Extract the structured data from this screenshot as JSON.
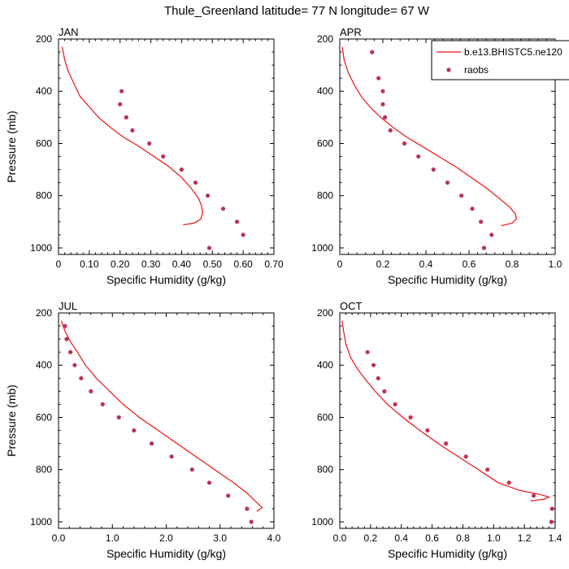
{
  "figure": {
    "title": "Thule_Greenland  latitude= 77 N longitude= 67 W"
  },
  "legend": {
    "items": [
      {
        "label": "b.e13.BHISTC5.ne120",
        "kind": "line",
        "color": "#ee1111"
      },
      {
        "label": "raobs",
        "kind": "marker",
        "color": "#bb3355"
      }
    ],
    "placement": "top-right of APR panel, clipped at figure edge"
  },
  "colors": {
    "model": "#ee1111",
    "obs": "#bb3355"
  },
  "chart_data": [
    {
      "type": "line",
      "panel_label": "JAN",
      "xlabel": "Specific Humidity (g/kg)",
      "ylabel": "Pressure (mb)",
      "xlim": [
        0,
        0.7
      ],
      "ylim": [
        1025,
        200
      ],
      "y_inverted": true,
      "xticks": [
        "0",
        "0.10",
        "0.20",
        "0.30",
        "0.40",
        "0.50",
        "0.60",
        "0.70"
      ],
      "xtick_values": [
        0,
        0.1,
        0.2,
        0.3,
        0.4,
        0.5,
        0.6,
        0.7
      ],
      "yticks": [
        "200",
        "400",
        "600",
        "800",
        "1000"
      ],
      "ytick_values": [
        200,
        400,
        600,
        800,
        1000
      ],
      "show_ylabel": true,
      "grid": false,
      "series": [
        {
          "name": "b.e13.BHISTC5.ne120",
          "style": "line",
          "points": [
            [
              0.012,
              230
            ],
            [
              0.02,
              280
            ],
            [
              0.03,
              320
            ],
            [
              0.05,
              370
            ],
            [
              0.07,
              420
            ],
            [
              0.1,
              460
            ],
            [
              0.13,
              500
            ],
            [
              0.17,
              540
            ],
            [
              0.21,
              575
            ],
            [
              0.26,
              610
            ],
            [
              0.31,
              650
            ],
            [
              0.36,
              690
            ],
            [
              0.4,
              730
            ],
            [
              0.43,
              770
            ],
            [
              0.455,
              810
            ],
            [
              0.465,
              840
            ],
            [
              0.468,
              865
            ],
            [
              0.462,
              890
            ],
            [
              0.44,
              905
            ],
            [
              0.405,
              912
            ]
          ]
        },
        {
          "name": "raobs",
          "style": "markers",
          "points": [
            [
              0.205,
              400
            ],
            [
              0.2,
              450
            ],
            [
              0.22,
              500
            ],
            [
              0.24,
              550
            ],
            [
              0.295,
              600
            ],
            [
              0.34,
              650
            ],
            [
              0.4,
              700
            ],
            [
              0.445,
              750
            ],
            [
              0.485,
              800
            ],
            [
              0.535,
              850
            ],
            [
              0.58,
              900
            ],
            [
              0.6,
              950
            ],
            [
              0.49,
              1000
            ]
          ]
        }
      ]
    },
    {
      "type": "line",
      "panel_label": "APR",
      "xlabel": "Specific Humidity (g/kg)",
      "ylabel": "",
      "xlim": [
        0,
        1.0
      ],
      "ylim": [
        1025,
        200
      ],
      "y_inverted": true,
      "xticks": [
        "0",
        "0.2",
        "0.4",
        "0.6",
        "0.8",
        "1.0"
      ],
      "xtick_values": [
        0,
        0.2,
        0.4,
        0.6,
        0.8,
        1.0
      ],
      "yticks": [
        "200",
        "400",
        "600",
        "800",
        "1000"
      ],
      "ytick_values": [
        200,
        400,
        600,
        800,
        1000
      ],
      "show_ylabel": false,
      "grid": false,
      "series": [
        {
          "name": "b.e13.BHISTC5.ne120",
          "style": "line",
          "points": [
            [
              0.012,
              230
            ],
            [
              0.02,
              280
            ],
            [
              0.04,
              330
            ],
            [
              0.07,
              380
            ],
            [
              0.1,
              420
            ],
            [
              0.14,
              460
            ],
            [
              0.19,
              500
            ],
            [
              0.25,
              540
            ],
            [
              0.31,
              575
            ],
            [
              0.38,
              610
            ],
            [
              0.46,
              650
            ],
            [
              0.54,
              690
            ],
            [
              0.61,
              730
            ],
            [
              0.68,
              770
            ],
            [
              0.74,
              810
            ],
            [
              0.79,
              845
            ],
            [
              0.815,
              870
            ],
            [
              0.82,
              890
            ],
            [
              0.8,
              905
            ],
            [
              0.75,
              915
            ]
          ]
        },
        {
          "name": "raobs",
          "style": "markers",
          "points": [
            [
              0.15,
              250
            ],
            [
              0.18,
              350
            ],
            [
              0.2,
              400
            ],
            [
              0.2,
              450
            ],
            [
              0.21,
              500
            ],
            [
              0.235,
              550
            ],
            [
              0.3,
              600
            ],
            [
              0.365,
              650
            ],
            [
              0.435,
              700
            ],
            [
              0.5,
              750
            ],
            [
              0.565,
              800
            ],
            [
              0.615,
              850
            ],
            [
              0.655,
              900
            ],
            [
              0.705,
              950
            ],
            [
              0.67,
              1000
            ]
          ]
        }
      ]
    },
    {
      "type": "line",
      "panel_label": "JUL",
      "xlabel": "Specific Humidity (g/kg)",
      "ylabel": "Pressure (mb)",
      "xlim": [
        0,
        4.0
      ],
      "ylim": [
        1025,
        200
      ],
      "y_inverted": true,
      "xticks": [
        "0.0",
        "1.0",
        "2.0",
        "3.0",
        "4.0"
      ],
      "xtick_values": [
        0,
        1,
        2,
        3,
        4
      ],
      "yticks": [
        "200",
        "400",
        "600",
        "800",
        "1000"
      ],
      "ytick_values": [
        200,
        400,
        600,
        800,
        1000
      ],
      "show_ylabel": true,
      "grid": false,
      "series": [
        {
          "name": "b.e13.BHISTC5.ne120",
          "style": "line",
          "points": [
            [
              0.05,
              230
            ],
            [
              0.12,
              270
            ],
            [
              0.22,
              310
            ],
            [
              0.35,
              350
            ],
            [
              0.5,
              400
            ],
            [
              0.7,
              450
            ],
            [
              0.95,
              500
            ],
            [
              1.2,
              550
            ],
            [
              1.5,
              600
            ],
            [
              1.85,
              650
            ],
            [
              2.2,
              700
            ],
            [
              2.55,
              750
            ],
            [
              2.9,
              800
            ],
            [
              3.25,
              850
            ],
            [
              3.5,
              890
            ],
            [
              3.65,
              920
            ],
            [
              3.78,
              945
            ],
            [
              3.68,
              960
            ]
          ]
        },
        {
          "name": "raobs",
          "style": "markers",
          "points": [
            [
              0.12,
              250
            ],
            [
              0.15,
              300
            ],
            [
              0.22,
              350
            ],
            [
              0.3,
              400
            ],
            [
              0.42,
              450
            ],
            [
              0.6,
              500
            ],
            [
              0.82,
              550
            ],
            [
              1.12,
              600
            ],
            [
              1.4,
              650
            ],
            [
              1.73,
              700
            ],
            [
              2.1,
              750
            ],
            [
              2.48,
              800
            ],
            [
              2.8,
              850
            ],
            [
              3.15,
              900
            ],
            [
              3.5,
              950
            ],
            [
              3.58,
              1000
            ]
          ]
        }
      ]
    },
    {
      "type": "line",
      "panel_label": "OCT",
      "xlabel": "Specific Humidity (g/kg)",
      "ylabel": "",
      "xlim": [
        0,
        1.4
      ],
      "ylim": [
        1025,
        200
      ],
      "y_inverted": true,
      "xticks": [
        "0.0",
        "0.2",
        "0.4",
        "0.6",
        "0.8",
        "1.0",
        "1.2",
        "1.4"
      ],
      "xtick_values": [
        0,
        0.2,
        0.4,
        0.6,
        0.8,
        1.0,
        1.2,
        1.4
      ],
      "yticks": [
        "200",
        "400",
        "600",
        "800",
        "1000"
      ],
      "ytick_values": [
        200,
        400,
        600,
        800,
        1000
      ],
      "show_ylabel": false,
      "grid": false,
      "series": [
        {
          "name": "b.e13.BHISTC5.ne120",
          "style": "line",
          "points": [
            [
              0.015,
              230
            ],
            [
              0.025,
              270
            ],
            [
              0.04,
              320
            ],
            [
              0.07,
              370
            ],
            [
              0.11,
              410
            ],
            [
              0.16,
              450
            ],
            [
              0.23,
              500
            ],
            [
              0.31,
              550
            ],
            [
              0.41,
              600
            ],
            [
              0.52,
              650
            ],
            [
              0.64,
              700
            ],
            [
              0.77,
              750
            ],
            [
              0.9,
              800
            ],
            [
              1.03,
              850
            ],
            [
              1.17,
              880
            ],
            [
              1.3,
              895
            ],
            [
              1.36,
              905
            ],
            [
              1.33,
              913
            ],
            [
              1.24,
              920
            ]
          ]
        },
        {
          "name": "raobs",
          "style": "markers",
          "points": [
            [
              0.18,
              350
            ],
            [
              0.22,
              400
            ],
            [
              0.25,
              450
            ],
            [
              0.29,
              500
            ],
            [
              0.36,
              550
            ],
            [
              0.46,
              600
            ],
            [
              0.57,
              650
            ],
            [
              0.69,
              700
            ],
            [
              0.82,
              750
            ],
            [
              0.96,
              800
            ],
            [
              1.1,
              850
            ],
            [
              1.26,
              900
            ],
            [
              1.38,
              950
            ],
            [
              1.375,
              1000
            ]
          ]
        }
      ]
    }
  ]
}
